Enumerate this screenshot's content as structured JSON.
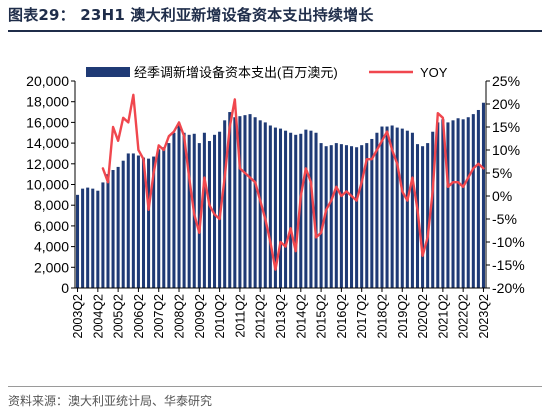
{
  "title": "图表29： 23H1 澳大利亚新增设备资本支出持续增长",
  "source": "资料来源：澳大利亚统计局、华泰研究",
  "colors": {
    "bar": "#1f3a75",
    "line": "#f0474e",
    "text": "#000000",
    "axis": "#000000"
  },
  "chart_data": {
    "type": "bar+line",
    "x": [
      "2003Q2",
      "2003Q3",
      "2003Q4",
      "2004Q1",
      "2004Q2",
      "2004Q3",
      "2004Q4",
      "2005Q1",
      "2005Q2",
      "2005Q3",
      "2005Q4",
      "2006Q1",
      "2006Q2",
      "2006Q3",
      "2006Q4",
      "2007Q1",
      "2007Q2",
      "2007Q3",
      "2007Q4",
      "2008Q1",
      "2008Q2",
      "2008Q3",
      "2008Q4",
      "2009Q1",
      "2009Q2",
      "2009Q3",
      "2009Q4",
      "2010Q1",
      "2010Q2",
      "2010Q3",
      "2010Q4",
      "2011Q1",
      "2011Q2",
      "2011Q3",
      "2011Q4",
      "2012Q1",
      "2012Q2",
      "2012Q3",
      "2012Q4",
      "2013Q1",
      "2013Q2",
      "2013Q3",
      "2013Q4",
      "2014Q1",
      "2014Q2",
      "2014Q3",
      "2014Q4",
      "2015Q1",
      "2015Q2",
      "2015Q3",
      "2015Q4",
      "2016Q1",
      "2016Q2",
      "2016Q3",
      "2016Q4",
      "2017Q1",
      "2017Q2",
      "2017Q3",
      "2017Q4",
      "2018Q1",
      "2018Q2",
      "2018Q3",
      "2018Q4",
      "2019Q1",
      "2019Q2",
      "2019Q3",
      "2019Q4",
      "2020Q1",
      "2020Q2",
      "2020Q3",
      "2020Q4",
      "2021Q1",
      "2021Q2",
      "2021Q3",
      "2021Q4",
      "2022Q1",
      "2022Q2",
      "2022Q3",
      "2022Q4",
      "2023Q1",
      "2023Q2"
    ],
    "tick_labels": [
      "2003Q2",
      "2004Q2",
      "2005Q2",
      "2006Q2",
      "2007Q2",
      "2008Q2",
      "2009Q2",
      "2010Q2",
      "2011Q2",
      "2012Q2",
      "2013Q2",
      "2014Q2",
      "2015Q2",
      "2016Q2",
      "2017Q2",
      "2018Q2",
      "2019Q2",
      "2020Q2",
      "2021Q2",
      "2022Q2",
      "2023Q2"
    ],
    "series": [
      {
        "name": "经季调新增设备资本支出(百万澳元)",
        "type": "bar",
        "axis": "left",
        "values": [
          9000,
          9600,
          9700,
          9600,
          9400,
          10200,
          11000,
          11400,
          11700,
          12300,
          13000,
          13000,
          12800,
          12600,
          12500,
          12700,
          13400,
          13600,
          14000,
          15000,
          15800,
          15000,
          14800,
          14900,
          14000,
          15000,
          14200,
          14800,
          15100,
          16200,
          17000,
          16500,
          16600,
          16700,
          16800,
          16500,
          16200,
          16000,
          15700,
          15500,
          15400,
          15200,
          15000,
          14800,
          14900,
          15300,
          15200,
          15000,
          14000,
          13700,
          13800,
          14000,
          13900,
          13800,
          13700,
          13600,
          13800,
          14000,
          14400,
          15000,
          15600,
          15600,
          15700,
          15500,
          15400,
          15200,
          15000,
          13900,
          13700,
          14000,
          15100,
          16000,
          16300,
          16000,
          16200,
          16400,
          16300,
          16500,
          16800,
          17200,
          17900
        ]
      },
      {
        "name": "YOY",
        "type": "line",
        "axis": "right",
        "values": [
          null,
          null,
          null,
          null,
          null,
          6,
          3,
          15,
          12,
          17,
          16,
          22,
          10,
          8,
          -3,
          5,
          11,
          10,
          13,
          14,
          16,
          13,
          4,
          -4,
          -8,
          4,
          -2,
          -4,
          -5,
          4,
          15,
          21,
          6,
          5,
          4,
          3,
          -1,
          -5,
          -10,
          -16,
          -10,
          -11,
          -7,
          -12,
          0,
          6,
          3,
          -9,
          -8,
          -3,
          -1,
          2,
          0,
          1,
          0,
          -1,
          3,
          8,
          8,
          10,
          12,
          14,
          10,
          7,
          1,
          -1,
          4,
          -3,
          -13,
          -9,
          1,
          18,
          17,
          2,
          3,
          3,
          2,
          4,
          6,
          7,
          6
        ]
      }
    ],
    "y_left": {
      "min": 0,
      "max": 20000,
      "step": 2000,
      "ticks": [
        "0",
        "2,000",
        "4,000",
        "6,000",
        "8,000",
        "10,000",
        "12,000",
        "14,000",
        "16,000",
        "18,000",
        "20,000"
      ]
    },
    "y_right": {
      "min": -20,
      "max": 25,
      "step": 5,
      "ticks": [
        "-20%",
        "-15%",
        "-10%",
        "-5%",
        "0%",
        "5%",
        "10%",
        "15%",
        "20%",
        "25%"
      ]
    },
    "legend": {
      "placement": "top",
      "bar_label": "经季调新增设备资本支出(百万澳元)",
      "line_label": "YOY"
    },
    "grid": false
  }
}
